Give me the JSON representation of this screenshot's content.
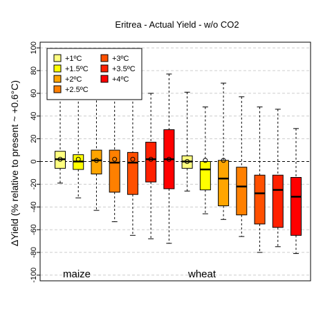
{
  "chart_data": {
    "type": "box",
    "title": "Eritrea - Actual Yield - w/o CO2",
    "ylabel": "ΔYield (% relative to present ~ +0.6°C)",
    "ylim": [
      -105,
      105
    ],
    "yticks": [
      -100,
      -80,
      -60,
      -40,
      -20,
      0,
      20,
      40,
      60,
      80,
      100
    ],
    "grid": true,
    "reference_line": 0,
    "groups": [
      {
        "label": "maize",
        "series_count": 7
      },
      {
        "label": "wheat",
        "series_count": 7
      }
    ],
    "legend": {
      "position": "top-left",
      "entries": [
        {
          "label": "+1ºC",
          "color": "#ffff80"
        },
        {
          "label": "+1.5ºC",
          "color": "#ffff00"
        },
        {
          "label": "+2ºC",
          "color": "#ffa500"
        },
        {
          "label": "+2.5ºC",
          "color": "#ff8000"
        },
        {
          "label": "+3ºC",
          "color": "#ff5000"
        },
        {
          "label": "+3.5ºC",
          "color": "#ff2000"
        },
        {
          "label": "+4ºC",
          "color": "#ff0000"
        }
      ]
    },
    "boxes": [
      {
        "crop": "maize",
        "scenario": "+1ºC",
        "min": -19,
        "q1": -6,
        "median": 2,
        "q3": 9,
        "max": 60,
        "mean": 2
      },
      {
        "crop": "maize",
        "scenario": "+1.5ºC",
        "min": -32,
        "q1": -7,
        "median": 0,
        "q3": 6,
        "max": 60,
        "mean": 2
      },
      {
        "crop": "maize",
        "scenario": "+2ºC",
        "min": -43,
        "q1": -11,
        "median": 1,
        "q3": 10,
        "max": 61,
        "mean": 1
      },
      {
        "crop": "maize",
        "scenario": "+2.5ºC",
        "min": -53,
        "q1": -27,
        "median": -1,
        "q3": 10,
        "max": 60,
        "mean": 2
      },
      {
        "crop": "maize",
        "scenario": "+3ºC",
        "min": -65,
        "q1": -29,
        "median": -1,
        "q3": 8,
        "max": 60,
        "mean": 2
      },
      {
        "crop": "maize",
        "scenario": "+3.5ºC",
        "min": -68,
        "q1": -18,
        "median": 2,
        "q3": 17,
        "max": 60,
        "mean": 2
      },
      {
        "crop": "maize",
        "scenario": "+4ºC",
        "min": -72,
        "q1": -24,
        "median": 2,
        "q3": 28,
        "max": 77,
        "mean": 2
      },
      {
        "crop": "wheat",
        "scenario": "+1ºC",
        "min": -26,
        "q1": -6,
        "median": 0,
        "q3": 5,
        "max": 61,
        "mean": 0
      },
      {
        "crop": "wheat",
        "scenario": "+1.5ºC",
        "min": -46,
        "q1": -25,
        "median": -7,
        "q3": 0,
        "max": 48,
        "mean": 1
      },
      {
        "crop": "wheat",
        "scenario": "+2ºC",
        "min": -51,
        "q1": -39,
        "median": -15,
        "q3": 1,
        "max": 69,
        "mean": 1
      },
      {
        "crop": "wheat",
        "scenario": "+2.5ºC",
        "min": -66,
        "q1": -47,
        "median": -22,
        "q3": -5,
        "max": 57,
        "mean": null
      },
      {
        "crop": "wheat",
        "scenario": "+3ºC",
        "min": -80,
        "q1": -55,
        "median": -28,
        "q3": -12,
        "max": 48,
        "mean": null
      },
      {
        "crop": "wheat",
        "scenario": "+3.5ºC",
        "min": -75,
        "q1": -58,
        "median": -25,
        "q3": -12,
        "max": 46,
        "mean": null
      },
      {
        "crop": "wheat",
        "scenario": "+4ºC",
        "min": -81,
        "q1": -65,
        "median": -31,
        "q3": -14,
        "max": 29,
        "mean": null
      }
    ]
  }
}
